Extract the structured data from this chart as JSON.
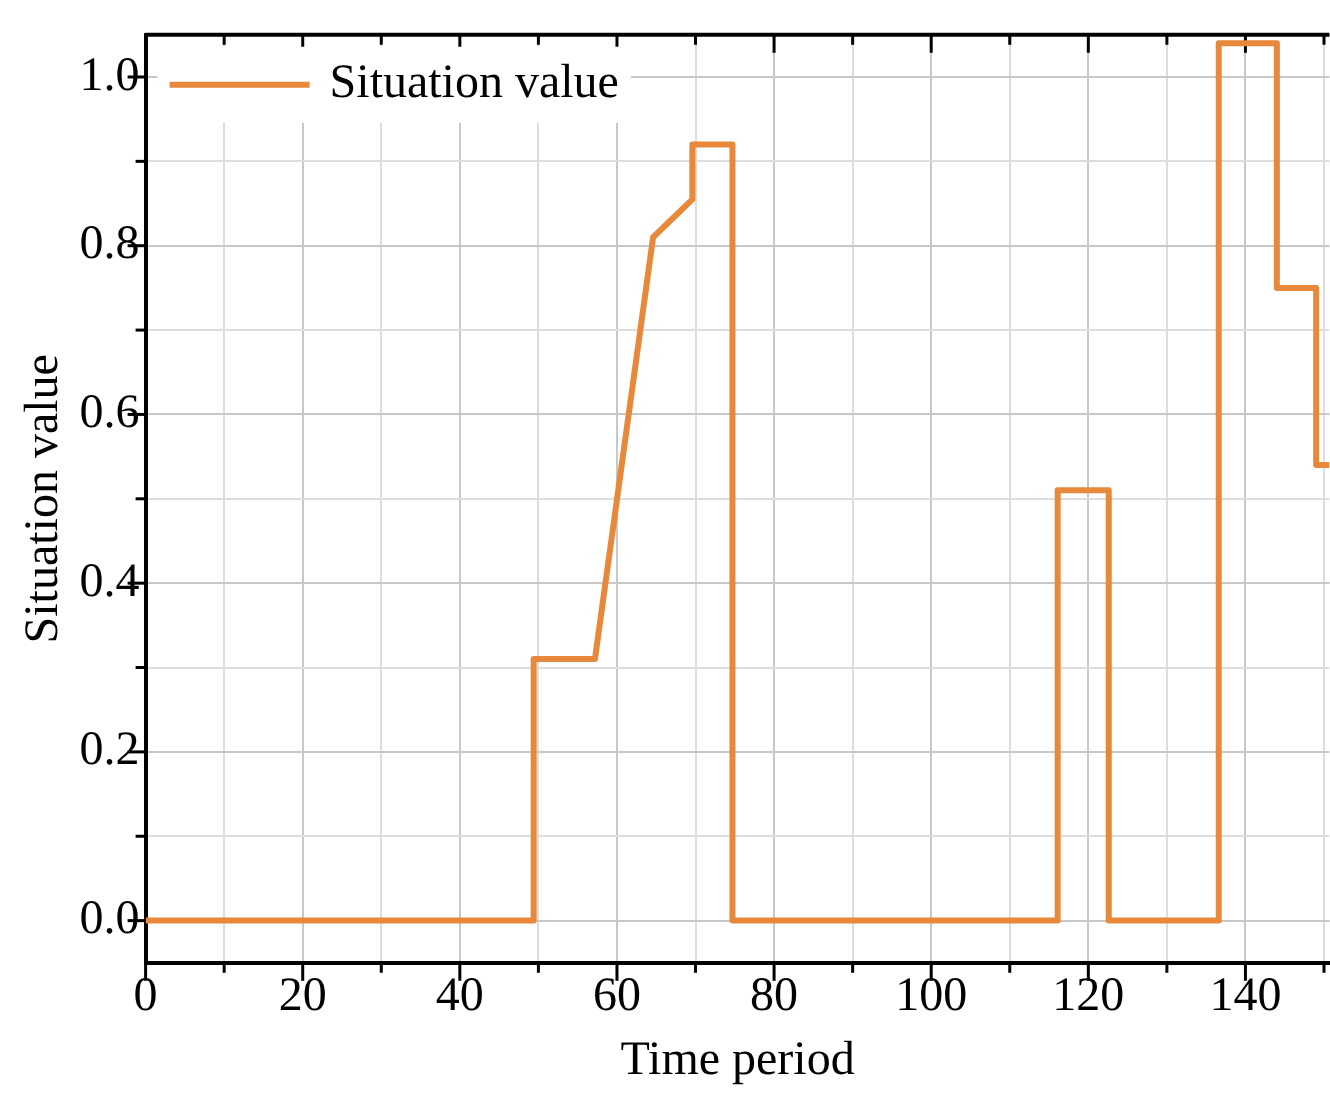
{
  "chart_data": {
    "type": "line",
    "xlabel": "Time period",
    "ylabel": "Situation value",
    "series": [
      {
        "name": "Situation value",
        "color": "#e8883a",
        "x": [
          0,
          49.4,
          49.4,
          57.2,
          64.6,
          69.6,
          69.6,
          74.7,
          74.7,
          116.1,
          116.1,
          122.6,
          122.6,
          136.6,
          136.6,
          144,
          144,
          149,
          149,
          150.7
        ],
        "values": [
          0,
          0,
          0.31,
          0.31,
          0.81,
          0.855,
          0.92,
          0.92,
          0,
          0,
          0.51,
          0.51,
          0,
          0,
          1.04,
          1.04,
          0.75,
          0.75,
          0.54,
          0.54
        ]
      }
    ],
    "xlim": [
      0,
      150.7
    ],
    "xticks": [
      0,
      {
        "value": 10,
        "label": null
      },
      20,
      {
        "value": 30,
        "label": null
      },
      40,
      {
        "value": 50,
        "label": null
      },
      60,
      {
        "value": 70,
        "label": null
      },
      80,
      {
        "value": 90,
        "label": null
      },
      100,
      {
        "value": 110,
        "label": null
      },
      120,
      {
        "value": 130,
        "label": null
      },
      140,
      {
        "value": 150,
        "label": null
      }
    ],
    "ylim": [
      -0.05,
      1.05
    ],
    "yticks": [
      {
        "value": 0,
        "label": "0.0"
      },
      {
        "value": 0.1,
        "label": null
      },
      {
        "value": 0.2,
        "label": "0.2"
      },
      {
        "value": 0.3,
        "label": null
      },
      {
        "value": 0.4,
        "label": "0.4"
      },
      {
        "value": 0.5,
        "label": null
      },
      {
        "value": 0.6,
        "label": "0.6"
      },
      {
        "value": 0.7,
        "label": null
      },
      {
        "value": 0.8,
        "label": "0.8"
      },
      {
        "value": 0.9,
        "label": null
      },
      {
        "value": 1,
        "label": "1.0"
      }
    ],
    "grid": true,
    "legend": "top left",
    "marker": "none",
    "line_style": "solid"
  }
}
